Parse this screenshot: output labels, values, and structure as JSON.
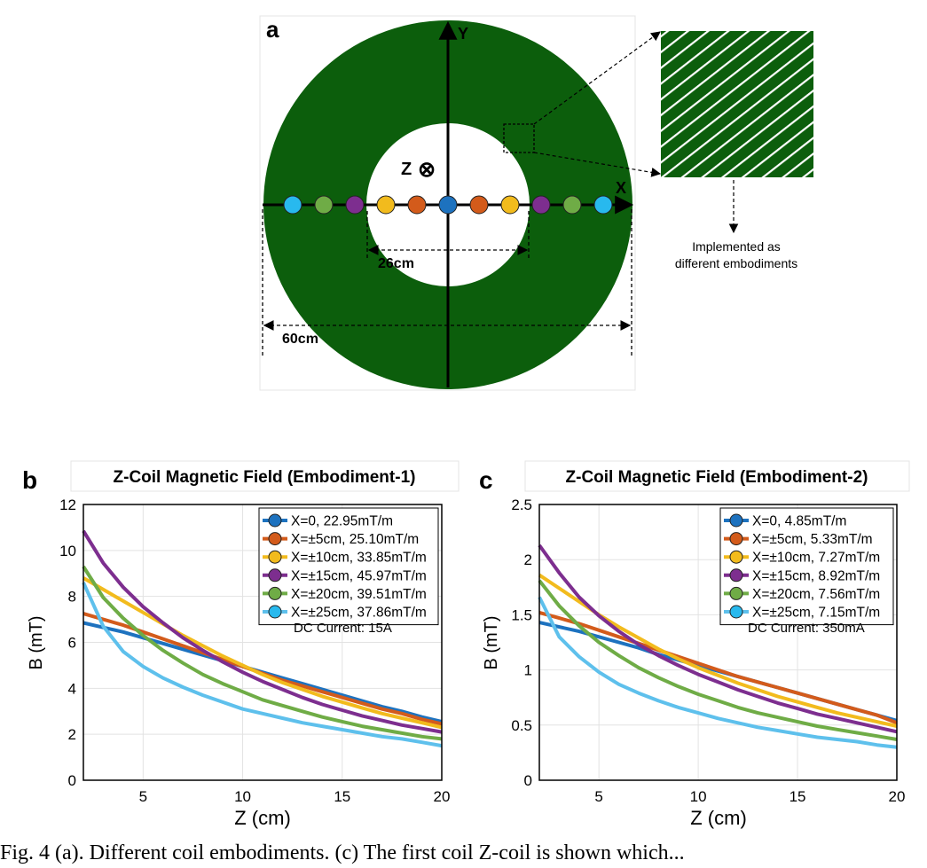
{
  "panel_a": {
    "label": "a",
    "axis_y": "Y",
    "axis_x": "X",
    "axis_z": "Z",
    "z_symbol": "⊗",
    "inner_dim": "26cm",
    "outer_dim": "60cm",
    "inset_note_1": "Implemented as",
    "inset_note_2": "different embodiments",
    "coil_color": "#0c5e0c",
    "markers": [
      {
        "x_cm": -25,
        "color": "#28b9ee"
      },
      {
        "x_cm": -20,
        "color": "#6fac46"
      },
      {
        "x_cm": -15,
        "color": "#7d2e8f"
      },
      {
        "x_cm": -10,
        "color": "#f2bb1d"
      },
      {
        "x_cm": -5,
        "color": "#d35b1b"
      },
      {
        "x_cm": 0,
        "color": "#1d72bf"
      },
      {
        "x_cm": 5,
        "color": "#d35b1b"
      },
      {
        "x_cm": 10,
        "color": "#f2bb1d"
      },
      {
        "x_cm": 15,
        "color": "#7d2e8f"
      },
      {
        "x_cm": 20,
        "color": "#6fac46"
      },
      {
        "x_cm": 25,
        "color": "#28b9ee"
      }
    ]
  },
  "chart_data": [
    {
      "type": "line",
      "panel_label": "b",
      "title": "Z-Coil Magnetic Field (Embodiment-1)",
      "xlabel": "Z (cm)",
      "ylabel": "B (mT)",
      "xlim": [
        2,
        20
      ],
      "ylim": [
        0,
        12
      ],
      "xticks": [
        5,
        10,
        15,
        20
      ],
      "yticks": [
        0,
        2,
        4,
        6,
        8,
        10,
        12
      ],
      "grid": true,
      "legend_position": "top-right",
      "annotation": "DC Current: 15A",
      "x": [
        2,
        3,
        4,
        5,
        6,
        7,
        8,
        9,
        10,
        11,
        12,
        13,
        14,
        15,
        16,
        17,
        18,
        19,
        20
      ],
      "series": [
        {
          "name": "X=0, 22.95mT/m",
          "color": "#1d72bf",
          "marker_color": "#1d72bf",
          "values": [
            6.85,
            6.65,
            6.45,
            6.2,
            5.95,
            5.7,
            5.45,
            5.2,
            4.95,
            4.7,
            4.45,
            4.2,
            3.95,
            3.7,
            3.45,
            3.2,
            3.0,
            2.75,
            2.55
          ]
        },
        {
          "name": "X=±5cm, 25.10mT/m",
          "color": "#d35b1b",
          "marker_color": "#d35b1b",
          "values": [
            7.25,
            7.0,
            6.75,
            6.45,
            6.15,
            5.85,
            5.55,
            5.25,
            4.95,
            4.65,
            4.35,
            4.1,
            3.85,
            3.6,
            3.35,
            3.1,
            2.9,
            2.65,
            2.45
          ]
        },
        {
          "name": "X=±10cm, 33.85mT/m",
          "color": "#f2bb1d",
          "marker_color": "#f2bb1d",
          "values": [
            8.8,
            8.3,
            7.8,
            7.3,
            6.8,
            6.3,
            5.85,
            5.4,
            5.0,
            4.6,
            4.25,
            3.95,
            3.65,
            3.4,
            3.15,
            2.9,
            2.7,
            2.5,
            2.3
          ]
        },
        {
          "name": "X=±15cm, 45.97mT/m",
          "color": "#7d2e8f",
          "marker_color": "#7d2e8f",
          "values": [
            10.85,
            9.45,
            8.4,
            7.55,
            6.85,
            6.2,
            5.65,
            5.15,
            4.7,
            4.3,
            3.95,
            3.6,
            3.3,
            3.05,
            2.8,
            2.6,
            2.4,
            2.25,
            2.1
          ]
        },
        {
          "name": "X=±20cm, 39.51mT/m",
          "color": "#6fac46",
          "marker_color": "#6fac46",
          "values": [
            9.3,
            7.95,
            7.05,
            6.3,
            5.65,
            5.1,
            4.6,
            4.2,
            3.85,
            3.5,
            3.25,
            3.0,
            2.75,
            2.55,
            2.35,
            2.2,
            2.05,
            1.9,
            1.8
          ]
        },
        {
          "name": "X=±25cm, 37.86mT/m",
          "color": "#5ec0ec",
          "marker_color": "#28b9ee",
          "values": [
            8.6,
            6.7,
            5.6,
            4.95,
            4.45,
            4.05,
            3.7,
            3.4,
            3.1,
            2.9,
            2.7,
            2.5,
            2.35,
            2.2,
            2.05,
            1.9,
            1.8,
            1.65,
            1.5
          ]
        }
      ]
    },
    {
      "type": "line",
      "panel_label": "c",
      "title": "Z-Coil Magnetic Field (Embodiment-2)",
      "xlabel": "Z (cm)",
      "ylabel": "B (mT)",
      "xlim": [
        2,
        20
      ],
      "ylim": [
        0,
        2.5
      ],
      "xticks": [
        5,
        10,
        15,
        20
      ],
      "yticks": [
        0,
        0.5,
        1,
        1.5,
        2,
        2.5
      ],
      "grid": true,
      "legend_position": "top-right",
      "annotation": "DC Current: 350mA",
      "x": [
        2,
        3,
        4,
        5,
        6,
        7,
        8,
        9,
        10,
        11,
        12,
        13,
        14,
        15,
        16,
        17,
        18,
        19,
        20
      ],
      "series": [
        {
          "name": "X=0, 4.85mT/m",
          "color": "#1d72bf",
          "marker_color": "#1d72bf",
          "values": [
            1.43,
            1.39,
            1.35,
            1.3,
            1.25,
            1.2,
            1.14,
            1.09,
            1.04,
            0.99,
            0.94,
            0.89,
            0.84,
            0.79,
            0.74,
            0.69,
            0.64,
            0.59,
            0.54
          ]
        },
        {
          "name": "X=±5cm, 5.33mT/m",
          "color": "#d35b1b",
          "marker_color": "#d35b1b",
          "values": [
            1.52,
            1.47,
            1.42,
            1.36,
            1.3,
            1.24,
            1.18,
            1.12,
            1.06,
            1.0,
            0.94,
            0.89,
            0.84,
            0.79,
            0.74,
            0.69,
            0.64,
            0.59,
            0.52
          ]
        },
        {
          "name": "X=±10cm, 7.27mT/m",
          "color": "#f2bb1d",
          "marker_color": "#f2bb1d",
          "values": [
            1.86,
            1.74,
            1.62,
            1.5,
            1.39,
            1.29,
            1.19,
            1.1,
            1.02,
            0.95,
            0.88,
            0.82,
            0.76,
            0.71,
            0.66,
            0.61,
            0.57,
            0.53,
            0.49
          ]
        },
        {
          "name": "X=±15cm, 8.92mT/m",
          "color": "#7d2e8f",
          "marker_color": "#7d2e8f",
          "values": [
            2.13,
            1.88,
            1.66,
            1.49,
            1.35,
            1.23,
            1.13,
            1.04,
            0.96,
            0.89,
            0.82,
            0.76,
            0.7,
            0.65,
            0.6,
            0.56,
            0.52,
            0.48,
            0.44
          ]
        },
        {
          "name": "X=±20cm, 7.56mT/m",
          "color": "#6fac46",
          "marker_color": "#6fac46",
          "values": [
            1.81,
            1.58,
            1.4,
            1.25,
            1.13,
            1.02,
            0.93,
            0.85,
            0.78,
            0.72,
            0.66,
            0.61,
            0.57,
            0.53,
            0.49,
            0.46,
            0.43,
            0.4,
            0.37
          ]
        },
        {
          "name": "X=±25cm, 7.15mT/m",
          "color": "#5ec0ec",
          "marker_color": "#28b9ee",
          "values": [
            1.66,
            1.3,
            1.12,
            0.98,
            0.87,
            0.79,
            0.72,
            0.66,
            0.61,
            0.56,
            0.52,
            0.48,
            0.45,
            0.42,
            0.39,
            0.37,
            0.35,
            0.32,
            0.3
          ]
        }
      ]
    }
  ],
  "caption": "Fig. 4 (a). Different coil embodiments. (c) The first coil Z-coil is shown which..."
}
